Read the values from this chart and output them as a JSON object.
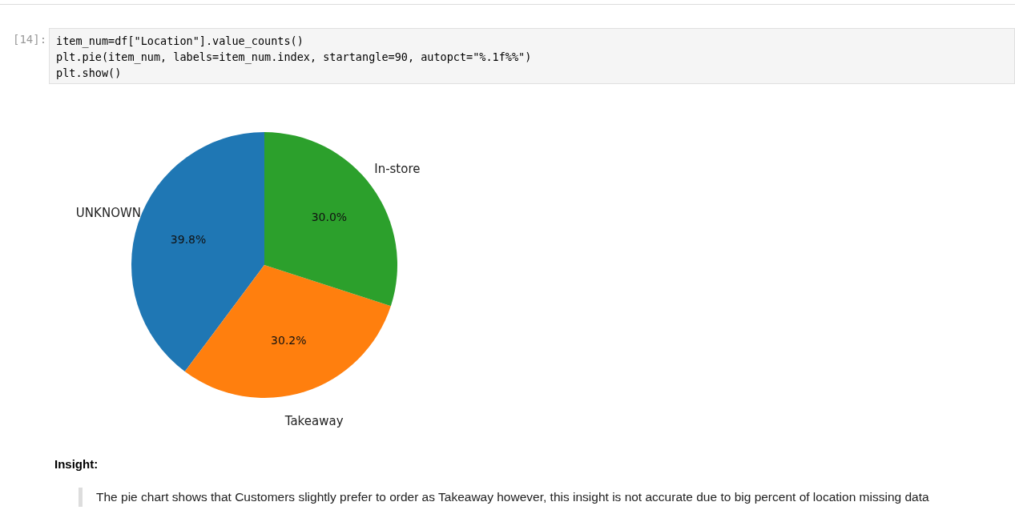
{
  "chart_data": {
    "type": "pie",
    "categories": [
      "UNKNOWN",
      "Takeaway",
      "In-store"
    ],
    "values": [
      39.8,
      30.2,
      30.0
    ],
    "value_labels": [
      "39.8%",
      "30.2%",
      "30.0%"
    ],
    "colors": [
      "#1f77b4",
      "#ff7f0e",
      "#2ca02c"
    ],
    "annotations": [
      "[14]:",
      "item_num=df[\"Location\"].value_counts()",
      "plt.pie(item_num, labels=item_num.index, startangle=90, autopct=\"%.1f%%\")",
      "plt.show()",
      "Insight:",
      "The pie chart shows that Customers slightly prefer to order as Takeaway however, this insight is not accurate due to big percent of location missing data"
    ]
  }
}
